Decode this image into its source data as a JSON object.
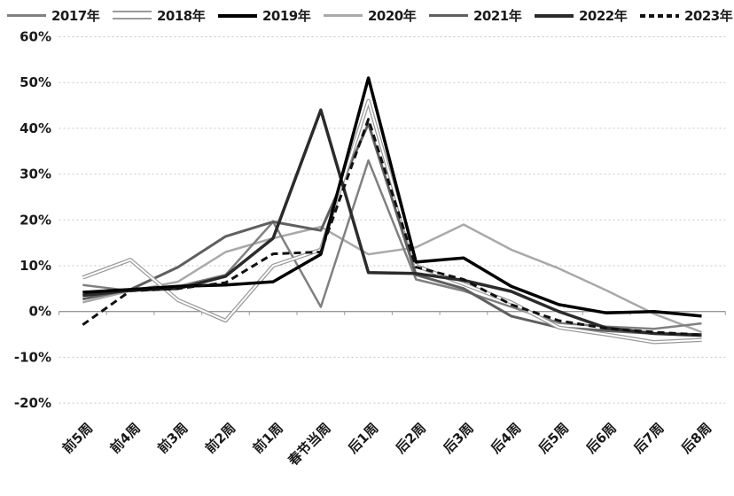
{
  "chart_data": {
    "type": "line",
    "title": "",
    "xlabel": "",
    "ylabel": "",
    "categories": [
      "前5周",
      "前4周",
      "前3周",
      "前2周",
      "前1周",
      "春节当周",
      "后1周",
      "后2周",
      "后3周",
      "后4周",
      "后5周",
      "后6周",
      "后7周",
      "后8周"
    ],
    "y_axis": {
      "tick_labels": [
        "60%",
        "50%",
        "40%",
        "30%",
        "20%",
        "10%",
        "0%",
        "-10%",
        "-20%"
      ],
      "tick_values": [
        60,
        50,
        40,
        30,
        20,
        10,
        0,
        -10,
        -20
      ],
      "ylim": [
        -20,
        60
      ],
      "format": "percent"
    },
    "grid": "dotted-horizontal",
    "legend_position": "top",
    "series": [
      {
        "name": "2017年",
        "color": "#808080",
        "width": 2.5,
        "style": "solid",
        "values": [
          5.8,
          4.5,
          5.5,
          8.0,
          19.6,
          1.0,
          33.0,
          7.0,
          4.5,
          1.0,
          -2.5,
          -3.3,
          -3.8,
          -2.6
        ]
      },
      {
        "name": "2018年",
        "color": "#9a9a9a",
        "width": 4.5,
        "style": "double",
        "values": [
          7.4,
          11.3,
          2.5,
          -2.0,
          10.0,
          13.5,
          46.0,
          10.0,
          6.0,
          2.0,
          -3.5,
          -5.0,
          -6.7,
          -6.2
        ]
      },
      {
        "name": "2019年",
        "color": "#000000",
        "width": 3.5,
        "style": "solid",
        "values": [
          4.2,
          4.8,
          5.5,
          5.8,
          6.5,
          12.5,
          51.0,
          10.8,
          11.7,
          5.5,
          1.5,
          -0.3,
          0.0,
          -1.0
        ]
      },
      {
        "name": "2020年",
        "color": "#a9a9a9",
        "width": 2.5,
        "style": "solid",
        "values": [
          2.0,
          4.5,
          6.5,
          13.0,
          16.0,
          18.5,
          12.5,
          14.0,
          19.0,
          13.5,
          9.4,
          4.6,
          -0.5,
          -4.5
        ]
      },
      {
        "name": "2021年",
        "color": "#5f5f5f",
        "width": 3,
        "style": "solid",
        "values": [
          2.7,
          4.8,
          9.7,
          16.4,
          19.6,
          17.7,
          41.0,
          8.0,
          5.0,
          -1.0,
          -3.5,
          -4.2,
          -4.8,
          -5.0
        ]
      },
      {
        "name": "2022年",
        "color": "#2b2b2b",
        "width": 3.5,
        "style": "solid",
        "values": [
          3.5,
          4.6,
          5.0,
          7.7,
          16.0,
          44.0,
          8.5,
          8.3,
          6.8,
          4.4,
          0.0,
          -3.6,
          -4.8,
          -5.2
        ]
      },
      {
        "name": "2023年",
        "color": "#111111",
        "width": 3,
        "style": "dashed",
        "values": [
          -2.9,
          4.5,
          5.0,
          6.3,
          12.6,
          13.0,
          42.0,
          9.7,
          7.0,
          1.5,
          -2.0,
          -3.7,
          -4.5,
          -5.1
        ]
      }
    ]
  },
  "layout_colors": {
    "gridline": "#c6c6c6",
    "axis_line": "#999999",
    "tick": "#999999",
    "label_text": "#1a1a1a"
  }
}
